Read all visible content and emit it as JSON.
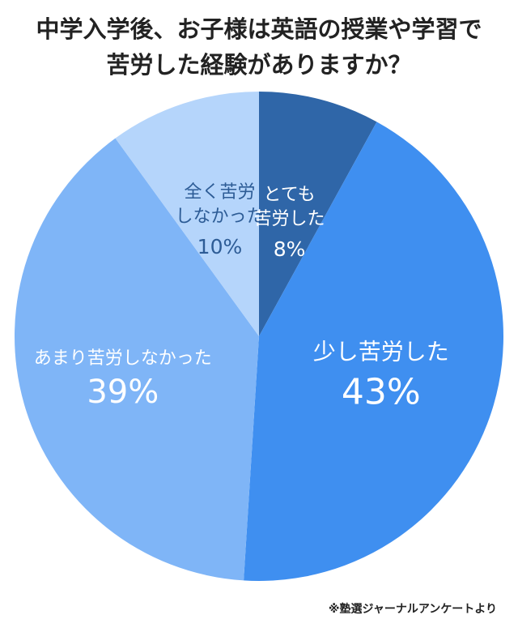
{
  "title_lines": [
    "中学入学後、お子様は英語の授業や学習で",
    "苦労した経験がありますか？"
  ],
  "source_note": "※塾選ジャーナルアンケートより",
  "chart_data": {
    "type": "pie",
    "title": "中学入学後、お子様は英語の授業や学習で苦労した経験がありますか？",
    "unit": "%",
    "slices": [
      {
        "label_lines": [
          "とても",
          "苦労した"
        ],
        "value": 8,
        "value_label": "8%",
        "color": "#2f66a8",
        "text_color": "#ffffff"
      },
      {
        "label_lines": [
          "少し苦労した"
        ],
        "value": 43,
        "value_label": "43%",
        "color": "#3f8ff0",
        "text_color": "#ffffff"
      },
      {
        "label_lines": [
          "あまり苦労しなかった"
        ],
        "value": 39,
        "value_label": "39%",
        "color": "#7fb5f7",
        "text_color": "#ffffff"
      },
      {
        "label_lines": [
          "全く苦労",
          "しなかった"
        ],
        "value": 10,
        "value_label": "10%",
        "color": "#b5d5fb",
        "text_color": "#2d5c96"
      }
    ],
    "start_angle": "top",
    "direction": "clockwise"
  }
}
